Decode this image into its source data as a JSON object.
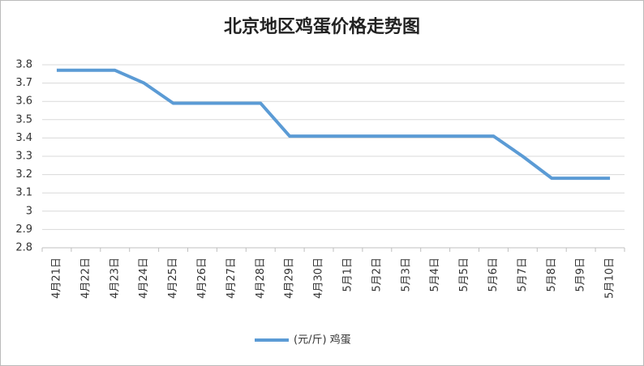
{
  "chart_data": {
    "type": "line",
    "title": "北京地区鸡蛋价格走势图",
    "categories": [
      "4月21日",
      "4月22日",
      "4月23日",
      "4月24日",
      "4月25日",
      "4月26日",
      "4月27日",
      "4月28日",
      "4月29日",
      "4月30日",
      "5月1日",
      "5月2日",
      "5月3日",
      "5月4日",
      "5月5日",
      "5月6日",
      "5月7日",
      "5月8日",
      "5月9日",
      "5月10日"
    ],
    "series": [
      {
        "name": "(元/斤) 鸡蛋",
        "color": "#5b9bd5",
        "values": [
          3.77,
          3.77,
          3.77,
          3.7,
          3.59,
          3.59,
          3.59,
          3.59,
          3.41,
          3.41,
          3.41,
          3.41,
          3.41,
          3.41,
          3.41,
          3.41,
          3.3,
          3.18,
          3.18,
          3.18
        ]
      }
    ],
    "ylim": [
      2.8,
      3.8
    ],
    "yticks": [
      2.8,
      2.9,
      3,
      3.1,
      3.2,
      3.3,
      3.4,
      3.5,
      3.6,
      3.7,
      3.8
    ],
    "grid": true,
    "legend": "bottom"
  }
}
